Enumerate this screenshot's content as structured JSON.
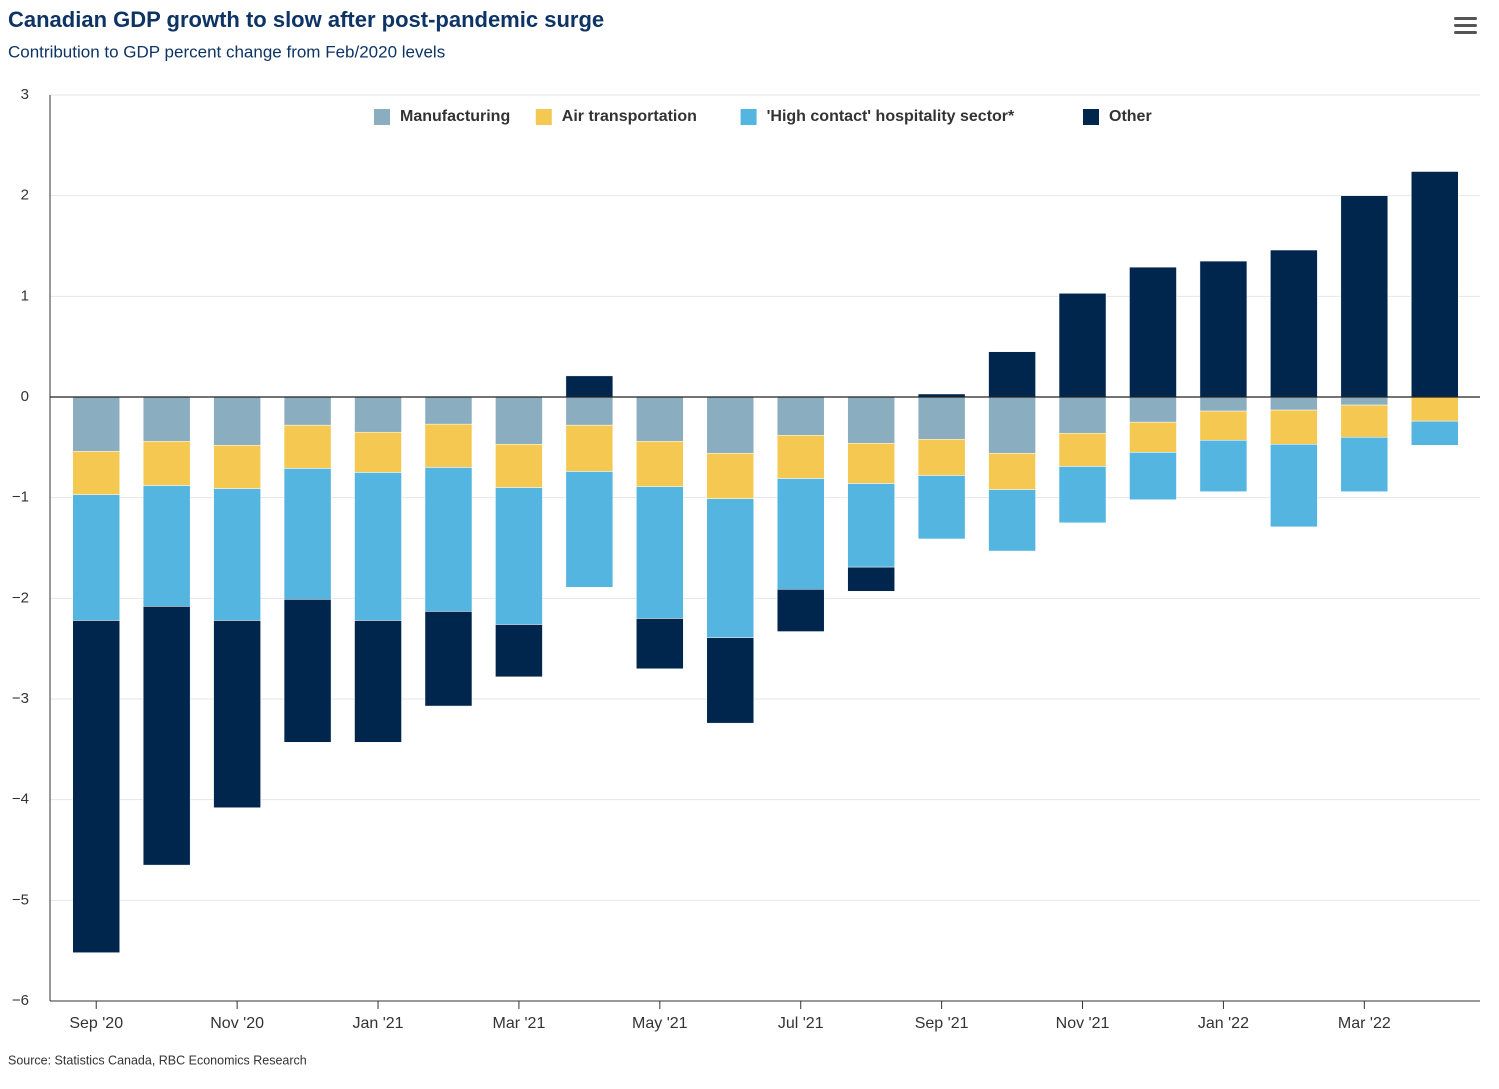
{
  "chart_data": {
    "type": "bar",
    "stacked": true,
    "title": "Canadian GDP growth to slow after post-pandemic surge",
    "subtitle": "Contribution to GDP percent change from Feb/2020 levels",
    "source": "Source: Statistics Canada, RBC Economics Research",
    "categories": [
      "Sep '20",
      null,
      "Nov '20",
      null,
      "Jan '21",
      null,
      "Mar '21",
      null,
      "May '21",
      null,
      "Jul '21",
      null,
      "Sep '21",
      null,
      "Nov '21",
      null,
      "Jan '22",
      null,
      "Mar '22",
      null
    ],
    "series": [
      {
        "name": "Manufacturing",
        "color": "#8aaebf",
        "values": [
          -0.54,
          -0.44,
          -0.48,
          -0.28,
          -0.35,
          -0.27,
          -0.47,
          -0.28,
          -0.44,
          -0.56,
          -0.38,
          -0.46,
          -0.42,
          -0.56,
          -0.36,
          -0.25,
          -0.14,
          -0.13,
          -0.08,
          0
        ]
      },
      {
        "name": "Air transportation",
        "color": "#f5c851",
        "values": [
          -0.43,
          -0.44,
          -0.43,
          -0.43,
          -0.4,
          -0.43,
          -0.43,
          -0.46,
          -0.45,
          -0.45,
          -0.43,
          -0.4,
          -0.36,
          -0.36,
          -0.33,
          -0.3,
          -0.29,
          -0.34,
          -0.32,
          -0.24
        ]
      },
      {
        "name": "'High contact' hospitality sector*",
        "color": "#53b5e0",
        "values": [
          -1.25,
          -1.2,
          -1.31,
          -1.3,
          -1.47,
          -1.43,
          -1.36,
          -1.15,
          -1.31,
          -1.38,
          -1.1,
          -0.83,
          -0.63,
          -0.61,
          -0.56,
          -0.47,
          -0.51,
          -0.82,
          -0.54,
          -0.24
        ]
      },
      {
        "name": "Other",
        "color": "#00264d",
        "values": [
          -3.3,
          -2.57,
          -1.86,
          -1.42,
          -1.21,
          -0.94,
          -0.52,
          0.21,
          -0.5,
          -0.85,
          -0.42,
          -0.24,
          0.03,
          0.45,
          1.03,
          1.29,
          1.35,
          1.46,
          2.0,
          2.24
        ]
      }
    ],
    "ylim": [
      -6,
      3
    ],
    "yticks": [
      {
        "value": -6,
        "label": "−6"
      },
      {
        "value": -5,
        "label": "−5"
      },
      {
        "value": -4,
        "label": "−4"
      },
      {
        "value": -3,
        "label": "−3"
      },
      {
        "value": -2,
        "label": "−2"
      },
      {
        "value": -1,
        "label": "−1"
      },
      0,
      1,
      2,
      3
    ],
    "grid": true,
    "legend": "top"
  }
}
